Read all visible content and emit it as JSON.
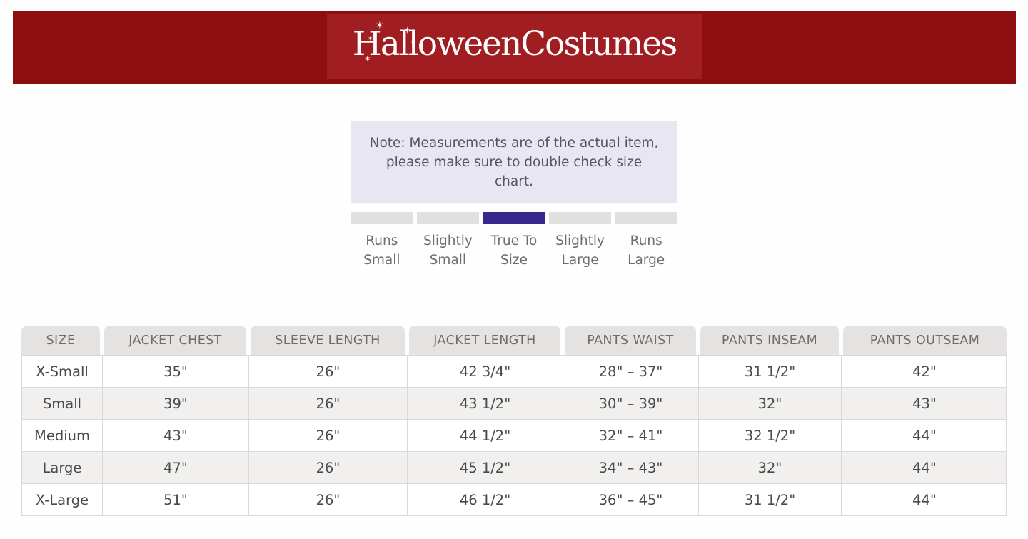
{
  "brand": {
    "logo_text": "HalloweenCostumes",
    "star_glyph": "✶",
    "banner_color": "#8c0e10",
    "logo_box_color": "#a01d21"
  },
  "note": {
    "text": "Note: Measurements are of the actual item, please make sure to double check size chart."
  },
  "fit_scale": {
    "options": [
      "Runs Small",
      "Slightly Small",
      "True To Size",
      "Slightly Large",
      "Runs Large"
    ],
    "selected": "True To Size",
    "selected_index": 2,
    "active_color": "#37288e",
    "inactive_color": "#e2e0df"
  },
  "size_chart": {
    "columns": [
      "SIZE",
      "JACKET CHEST",
      "SLEEVE LENGTH",
      "JACKET LENGTH",
      "PANTS WAIST",
      "PANTS INSEAM",
      "PANTS OUTSEAM"
    ],
    "rows": [
      [
        "X-Small",
        "35\"",
        "26\"",
        "42 3/4\"",
        "28\" – 37\"",
        "31 1/2\"",
        "42\""
      ],
      [
        "Small",
        "39\"",
        "26\"",
        "43 1/2\"",
        "30\" – 39\"",
        "32\"",
        "43\""
      ],
      [
        "Medium",
        "43\"",
        "26\"",
        "44 1/2\"",
        "32\" – 41\"",
        "32 1/2\"",
        "44\""
      ],
      [
        "Large",
        "47\"",
        "26\"",
        "45 1/2\"",
        "34\" – 43\"",
        "32\"",
        "44\""
      ],
      [
        "X-Large",
        "51\"",
        "26\"",
        "46 1/2\"",
        "36\" – 45\"",
        "31 1/2\"",
        "44\""
      ]
    ]
  }
}
